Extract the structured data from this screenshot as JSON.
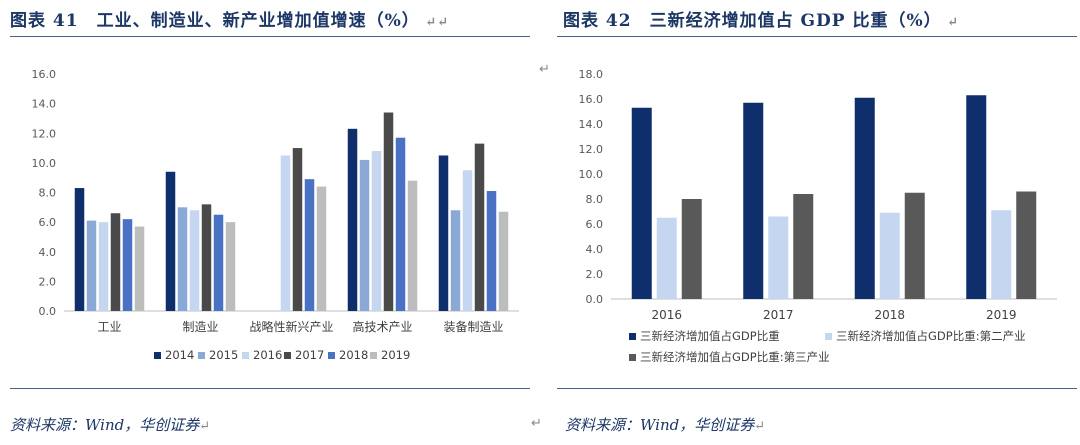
{
  "left": {
    "title": "图表 41　工业、制造业、新产业增加值增速（%）",
    "source": "资料来源：Wind，华创证券",
    "chart_data": {
      "type": "bar",
      "categories": [
        "工业",
        "制造业",
        "战略性新兴产业",
        "高技术产业",
        "装备制造业"
      ],
      "series": [
        {
          "name": "2014",
          "color": "#0e2f6b",
          "values": [
            8.3,
            9.4,
            null,
            12.3,
            10.5
          ]
        },
        {
          "name": "2015",
          "color": "#8aa9d6",
          "values": [
            6.1,
            7.0,
            null,
            10.2,
            6.8
          ]
        },
        {
          "name": "2016",
          "color": "#c5d7f0",
          "values": [
            6.0,
            6.8,
            10.5,
            10.8,
            9.5
          ]
        },
        {
          "name": "2017",
          "color": "#4a4a4a",
          "values": [
            6.6,
            7.2,
            11.0,
            13.4,
            11.3
          ]
        },
        {
          "name": "2018",
          "color": "#4a72c4",
          "values": [
            6.2,
            6.5,
            8.9,
            11.7,
            8.1
          ]
        },
        {
          "name": "2019",
          "color": "#bdbdbd",
          "values": [
            5.7,
            6.0,
            8.4,
            8.8,
            6.7
          ]
        }
      ],
      "ylim": [
        0,
        16
      ],
      "yticks": [
        "0.0",
        "2.0",
        "4.0",
        "6.0",
        "8.0",
        "10.0",
        "12.0",
        "14.0",
        "16.0"
      ],
      "grid": false,
      "legend": "bottom"
    }
  },
  "right": {
    "title": "图表 42　三新经济增加值占 GDP 比重（%）",
    "source": "资料来源：Wind，华创证券",
    "chart_data": {
      "type": "bar",
      "categories": [
        "2016",
        "2017",
        "2018",
        "2019"
      ],
      "series": [
        {
          "name": "三新经济增加值占GDP比重",
          "color": "#0e2f6b",
          "values": [
            15.3,
            15.7,
            16.1,
            16.3
          ]
        },
        {
          "name": "三新经济增加值占GDP比重:第二产业",
          "color": "#c5d7f0",
          "values": [
            6.5,
            6.6,
            6.9,
            7.1
          ]
        },
        {
          "name": "三新经济增加值占GDP比重:第三产业",
          "color": "#595959",
          "values": [
            8.0,
            8.4,
            8.5,
            8.6
          ]
        }
      ],
      "ylim": [
        0,
        18
      ],
      "yticks": [
        "0.0",
        "2.0",
        "4.0",
        "6.0",
        "8.0",
        "10.0",
        "12.0",
        "14.0",
        "16.0",
        "18.0"
      ],
      "grid": false,
      "legend": "bottom"
    }
  }
}
